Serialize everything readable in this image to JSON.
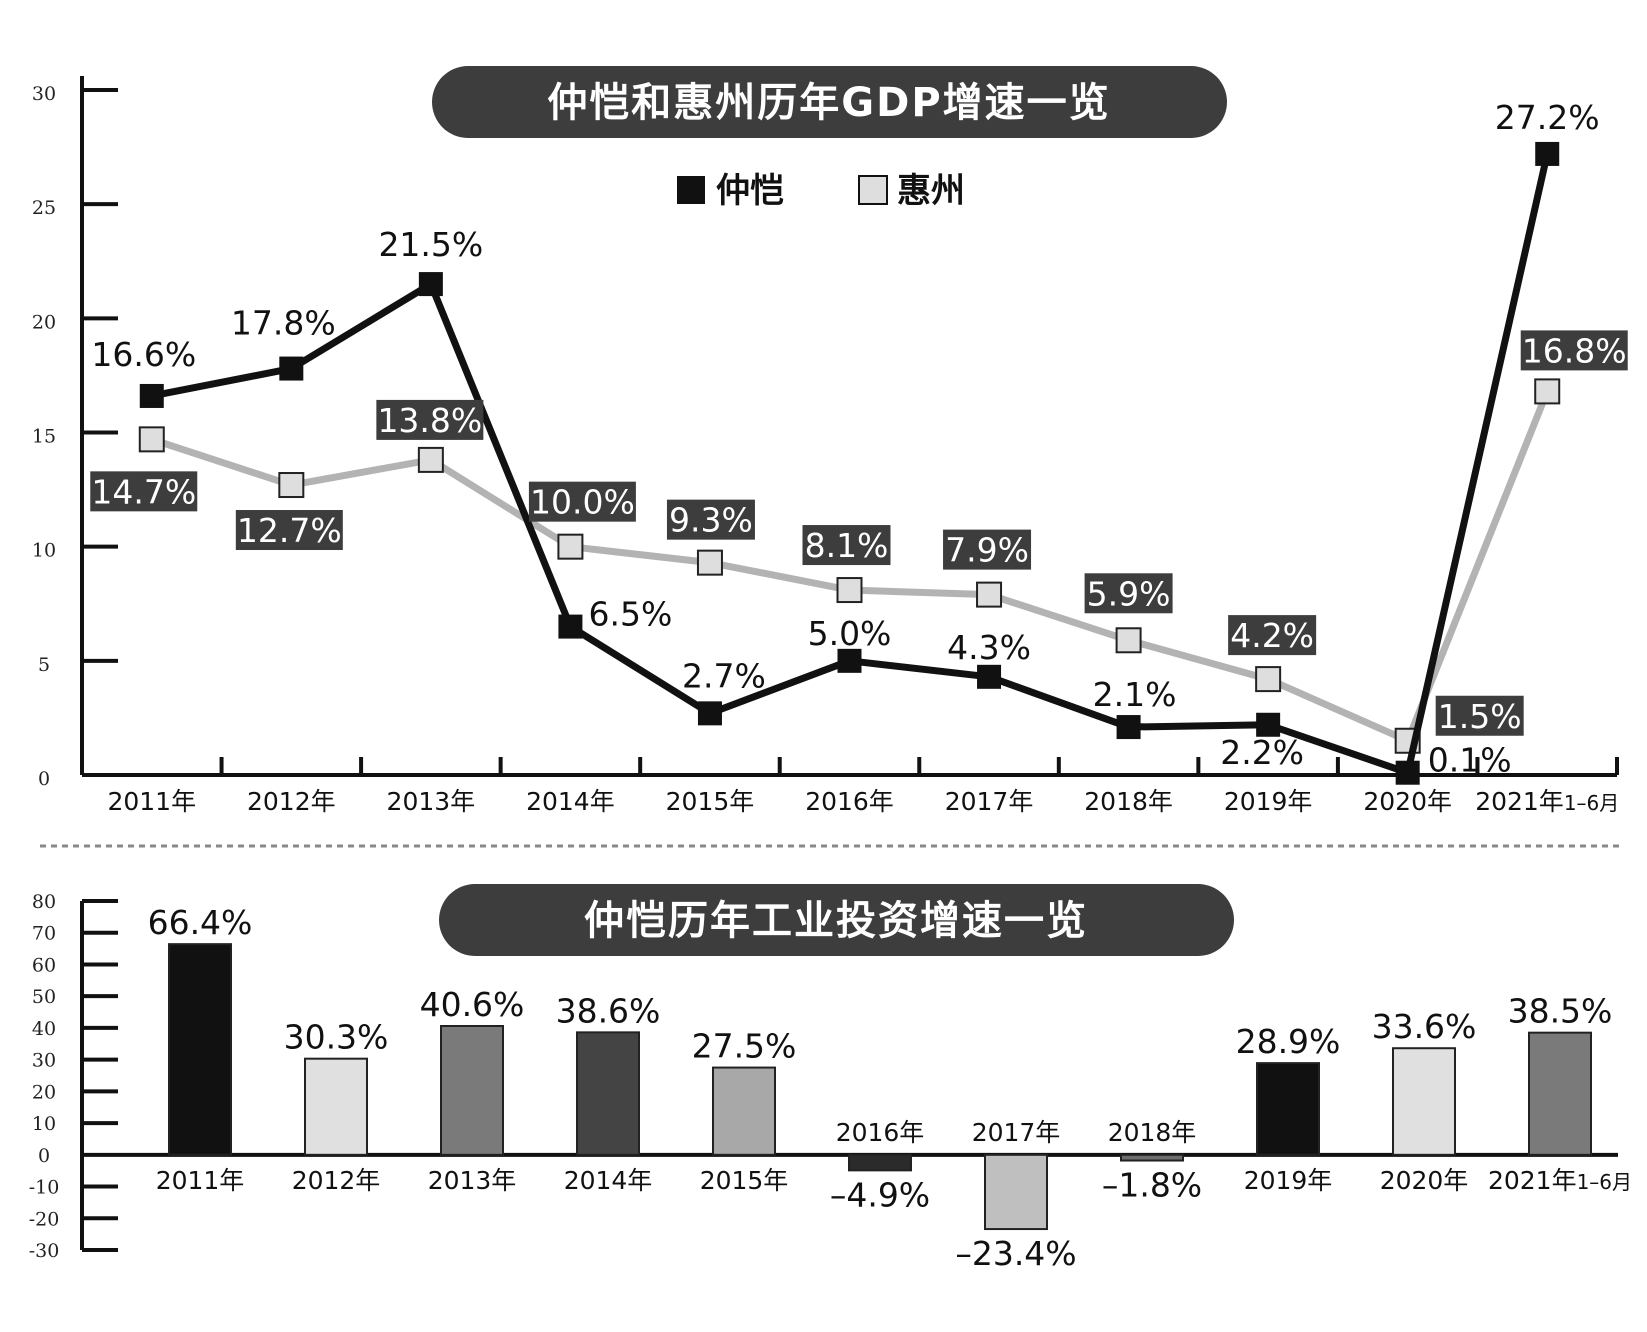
{
  "chart_data": [
    {
      "type": "line",
      "title": "仲恺和惠州历年GDP增速一览",
      "categories": [
        "2011年",
        "2012年",
        "2013年",
        "2014年",
        "2015年",
        "2016年",
        "2017年",
        "2018年",
        "2019年",
        "2020年",
        "2021年1-6月"
      ],
      "category_main": [
        "2011年",
        "2012年",
        "2013年",
        "2014年",
        "2015年",
        "2016年",
        "2017年",
        "2018年",
        "2019年",
        "2020年",
        "2021年"
      ],
      "category_suffix": [
        "",
        "",
        "",
        "",
        "",
        "",
        "",
        "",
        "",
        "",
        "1–6月"
      ],
      "ylim": [
        0,
        30
      ],
      "yticks": [
        "0",
        "5",
        "10",
        "15",
        "20",
        "25",
        "30"
      ],
      "legend_position": "top-center",
      "series": [
        {
          "name": "仲恺",
          "color": "#111111",
          "values": [
            16.6,
            17.8,
            21.5,
            6.5,
            2.7,
            5.0,
            4.3,
            2.1,
            2.2,
            0.1,
            27.2
          ],
          "labels": [
            "16.6%",
            "17.8%",
            "21.5%",
            "6.5%",
            "2.7%",
            "5.0%",
            "4.3%",
            "2.1%",
            "2.2%",
            "0.1%",
            "27.2%"
          ]
        },
        {
          "name": "惠州",
          "color": "#b3b3b3",
          "values": [
            14.7,
            12.7,
            13.8,
            10.0,
            9.3,
            8.1,
            7.9,
            5.9,
            4.2,
            1.5,
            16.8
          ],
          "labels": [
            "14.7%",
            "12.7%",
            "13.8%",
            "10.0%",
            "9.3%",
            "8.1%",
            "7.9%",
            "5.9%",
            "4.2%",
            "1.5%",
            "16.8%"
          ]
        }
      ]
    },
    {
      "type": "bar",
      "title": "仲恺历年工业投资增速一览",
      "categories": [
        "2011年",
        "2012年",
        "2013年",
        "2014年",
        "2015年",
        "2016年",
        "2017年",
        "2018年",
        "2019年",
        "2020年",
        "2021年1-6月"
      ],
      "category_main": [
        "2011年",
        "2012年",
        "2013年",
        "2014年",
        "2015年",
        "2016年",
        "2017年",
        "2018年",
        "2019年",
        "2020年",
        "2021年"
      ],
      "category_suffix": [
        "",
        "",
        "",
        "",
        "",
        "",
        "",
        "",
        "",
        "",
        "1–6月"
      ],
      "values": [
        66.4,
        30.3,
        40.6,
        38.6,
        27.5,
        -4.9,
        -23.4,
        -1.8,
        28.9,
        33.6,
        38.5
      ],
      "labels": [
        "66.4%",
        "30.3%",
        "40.6%",
        "38.6%",
        "27.5%",
        "–4.9%",
        "–23.4%",
        "–1.8%",
        "28.9%",
        "33.6%",
        "38.5%"
      ],
      "colors": [
        "#111111",
        "#e0e0e0",
        "#7a7a7a",
        "#444444",
        "#a8a8a8",
        "#2b2b2b",
        "#bfbfbf",
        "#6e6e6e",
        "#111111",
        "#e0e0e0",
        "#7a7a7a"
      ],
      "ylim": [
        -30,
        80
      ],
      "yticks": [
        "80",
        "70",
        "60",
        "50",
        "40",
        "30",
        "20",
        "10",
        "0",
        "-10",
        "-20",
        "-30"
      ]
    }
  ]
}
